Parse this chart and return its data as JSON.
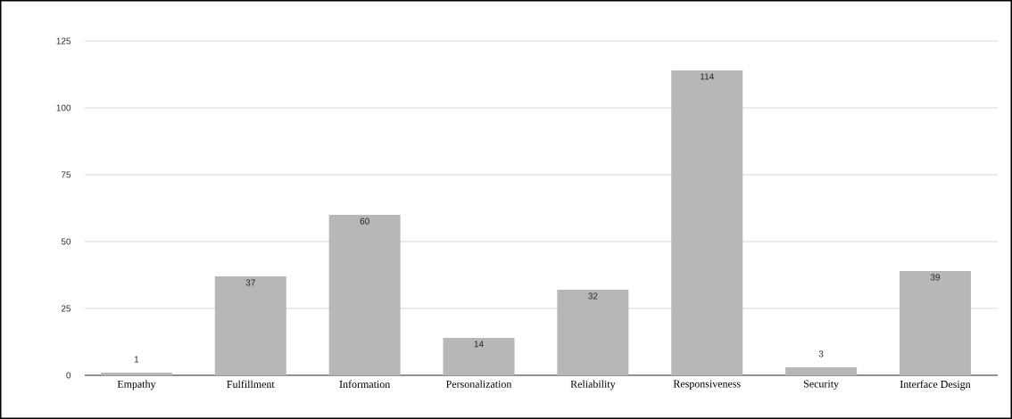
{
  "chart_data": {
    "type": "bar",
    "categories": [
      "Empathy",
      "Fulfillment",
      "Information",
      "Personalization",
      "Reliability",
      "Responsiveness",
      "Security",
      "Interface Design"
    ],
    "values": [
      1,
      37,
      60,
      14,
      32,
      114,
      3,
      39
    ],
    "color": "#b7b7b7",
    "ylim": [
      0,
      125
    ],
    "yticks": [
      0,
      25,
      50,
      75,
      100,
      125
    ],
    "grid": "y",
    "data_labels": true
  }
}
